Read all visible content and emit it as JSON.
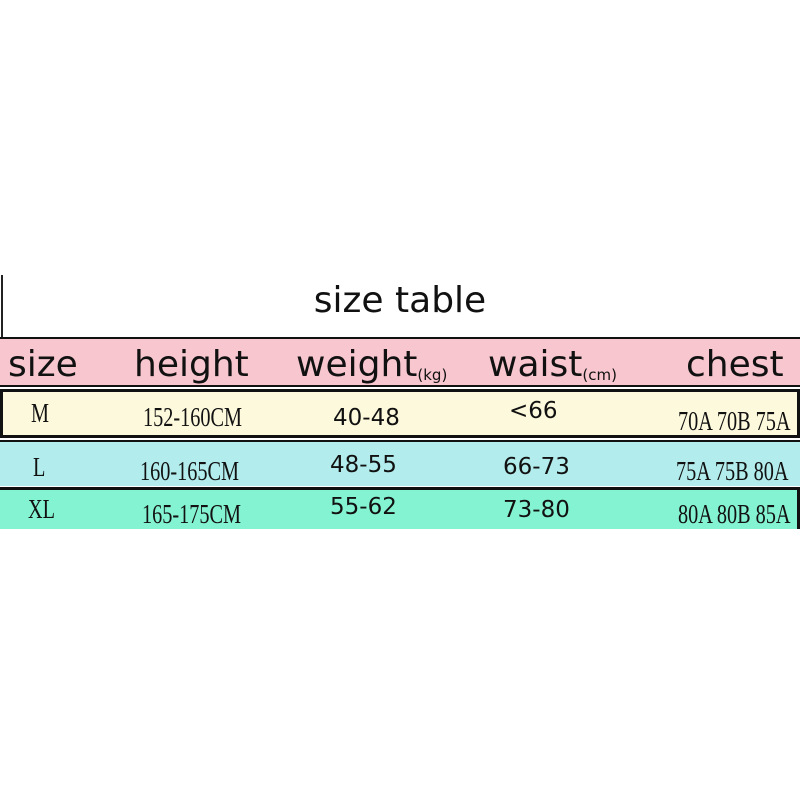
{
  "title": "size table",
  "colors": {
    "header": "#f7c6cf",
    "M": "#fdf9dc",
    "L": "#b2ecec",
    "XL": "#84f3d1"
  },
  "headers": {
    "size": "size",
    "height": "height",
    "weight": "weight",
    "weight_unit": "(kg)",
    "waist": "waist",
    "waist_unit": "(cm)",
    "chest": "chest"
  },
  "rows": [
    {
      "size": "M",
      "height": "152-160CM",
      "weight": "40-48",
      "waist": "<66",
      "chest": "70A 70B 75A"
    },
    {
      "size": "L",
      "height": "160-165CM",
      "weight": "48-55",
      "waist": "66-73",
      "chest": "75A 75B 80A"
    },
    {
      "size": "XL",
      "height": "165-175CM",
      "weight": "55-62",
      "waist": "73-80",
      "chest": "80A 80B 85A"
    }
  ]
}
